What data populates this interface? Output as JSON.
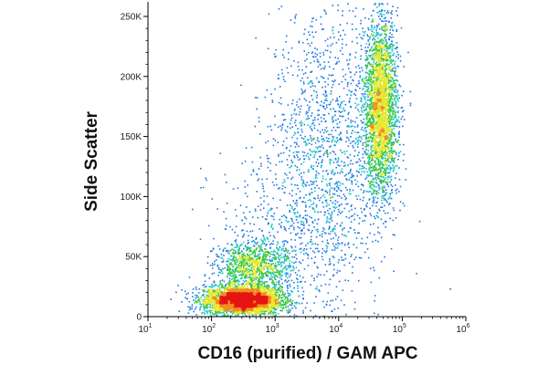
{
  "chart_data": {
    "type": "scatter",
    "subtype": "flow-cytometry density dot plot",
    "xlabel": "CD16 (purified) / GAM APC",
    "ylabel": "Side Scatter",
    "x_scale": "log",
    "xlim": [
      10,
      1000000
    ],
    "x_ticks": [
      10,
      100,
      1000,
      10000,
      100000,
      1000000
    ],
    "x_tick_labels": [
      {
        "base": "10",
        "exp": "1"
      },
      {
        "base": "10",
        "exp": "2"
      },
      {
        "base": "10",
        "exp": "3"
      },
      {
        "base": "10",
        "exp": "4"
      },
      {
        "base": "10",
        "exp": "5"
      },
      {
        "base": "10",
        "exp": "6"
      }
    ],
    "ylim": [
      0,
      262144
    ],
    "y_ticks": [
      0,
      50000,
      100000,
      150000,
      200000,
      250000
    ],
    "y_tick_labels": [
      "0",
      "50K",
      "100K",
      "150K",
      "200K",
      "250K"
    ],
    "grid": false,
    "color_scale": [
      "#1a1ab0",
      "#1e78e6",
      "#22c8c8",
      "#3cc83c",
      "#e6e628",
      "#f08c1e",
      "#e61414"
    ],
    "populations": [
      {
        "x_center": 300,
        "y_center": 14000,
        "x_spread_decades": 0.3,
        "y_spread": 6000,
        "relative_count": 0.38,
        "peak_density": "high"
      },
      {
        "x_center": 450,
        "y_center": 42000,
        "x_spread_decades": 0.3,
        "y_spread": 11000,
        "relative_count": 0.11,
        "peak_density": "medium"
      },
      {
        "x_center": 45000,
        "y_center": 175000,
        "x_spread_decades": 0.13,
        "y_spread": 38000,
        "relative_count": 0.3,
        "peak_density": "medium"
      },
      {
        "x_center": 6000,
        "y_center": 140000,
        "x_spread_decades": 0.45,
        "y_spread": 60000,
        "relative_count": 0.15,
        "peak_density": "low"
      },
      {
        "x_center": 1500,
        "y_center": 60000,
        "x_spread_decades": 0.6,
        "y_spread": 40000,
        "relative_count": 0.06,
        "peak_density": "low"
      }
    ]
  }
}
